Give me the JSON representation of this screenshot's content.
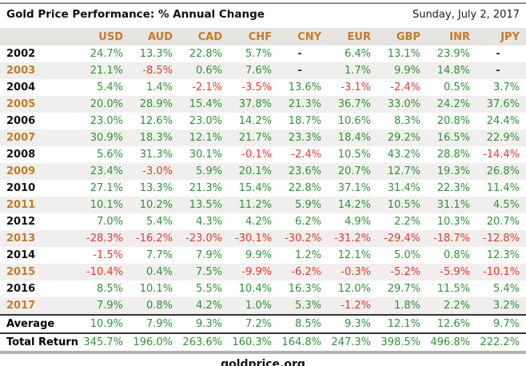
{
  "header": {
    "title": "Gold Price Performance: % Annual Change",
    "date": "Sunday, July 2, 2017"
  },
  "chart_data": {
    "type": "table",
    "title": "Gold Price Performance: % Annual Change",
    "columns": [
      "USD",
      "AUD",
      "CAD",
      "CHF",
      "CNY",
      "EUR",
      "GBP",
      "INR",
      "JPY"
    ],
    "rows": [
      {
        "label": "2002",
        "values": [
          "24.7%",
          "13.3%",
          "22.8%",
          "5.7%",
          "-",
          "6.4%",
          "13.1%",
          "23.9%",
          "-"
        ]
      },
      {
        "label": "2003",
        "values": [
          "21.1%",
          "-8.5%",
          "0.6%",
          "7.6%",
          "-",
          "1.7%",
          "9.9%",
          "14.8%",
          "-"
        ]
      },
      {
        "label": "2004",
        "values": [
          "5.4%",
          "1.4%",
          "-2.1%",
          "-3.5%",
          "13.6%",
          "-3.1%",
          "-2.4%",
          "0.5%",
          "3.7%"
        ]
      },
      {
        "label": "2005",
        "values": [
          "20.0%",
          "28.9%",
          "15.4%",
          "37.8%",
          "21.3%",
          "36.7%",
          "33.0%",
          "24.2%",
          "37.6%"
        ]
      },
      {
        "label": "2006",
        "values": [
          "23.0%",
          "12.6%",
          "23.0%",
          "14.2%",
          "18.7%",
          "10.6%",
          "8.3%",
          "20.8%",
          "24.4%"
        ]
      },
      {
        "label": "2007",
        "values": [
          "30.9%",
          "18.3%",
          "12.1%",
          "21.7%",
          "23.3%",
          "18.4%",
          "29.2%",
          "16.5%",
          "22.9%"
        ]
      },
      {
        "label": "2008",
        "values": [
          "5.6%",
          "31.3%",
          "30.1%",
          "-0.1%",
          "-2.4%",
          "10.5%",
          "43.2%",
          "28.8%",
          "-14.4%"
        ]
      },
      {
        "label": "2009",
        "values": [
          "23.4%",
          "-3.0%",
          "5.9%",
          "20.1%",
          "23.6%",
          "20.7%",
          "12.7%",
          "19.3%",
          "26.8%"
        ]
      },
      {
        "label": "2010",
        "values": [
          "27.1%",
          "13.3%",
          "21.3%",
          "15.4%",
          "22.8%",
          "37.1%",
          "31.4%",
          "22.3%",
          "11.4%"
        ]
      },
      {
        "label": "2011",
        "values": [
          "10.1%",
          "10.2%",
          "13.5%",
          "11.2%",
          "5.9%",
          "14.2%",
          "10.5%",
          "31.1%",
          "4.5%"
        ]
      },
      {
        "label": "2012",
        "values": [
          "7.0%",
          "5.4%",
          "4.3%",
          "4.2%",
          "6.2%",
          "4.9%",
          "2.2%",
          "10.3%",
          "20.7%"
        ]
      },
      {
        "label": "2013",
        "values": [
          "-28.3%",
          "-16.2%",
          "-23.0%",
          "-30.1%",
          "-30.2%",
          "-31.2%",
          "-29.4%",
          "-18.7%",
          "-12.8%"
        ]
      },
      {
        "label": "2014",
        "values": [
          "-1.5%",
          "7.7%",
          "7.9%",
          "9.9%",
          "1.2%",
          "12.1%",
          "5.0%",
          "0.8%",
          "12.3%"
        ]
      },
      {
        "label": "2015",
        "values": [
          "-10.4%",
          "0.4%",
          "7.5%",
          "-9.9%",
          "-6.2%",
          "-0.3%",
          "-5.2%",
          "-5.9%",
          "-10.1%"
        ]
      },
      {
        "label": "2016",
        "values": [
          "8.5%",
          "10.1%",
          "5.5%",
          "10.4%",
          "16.3%",
          "12.0%",
          "29.7%",
          "11.5%",
          "5.4%"
        ]
      },
      {
        "label": "2017",
        "values": [
          "7.9%",
          "0.8%",
          "4.2%",
          "1.0%",
          "5.3%",
          "-1.2%",
          "1.8%",
          "2.2%",
          "3.2%"
        ]
      },
      {
        "label": "Average",
        "values": [
          "10.9%",
          "7.9%",
          "9.3%",
          "7.2%",
          "8.5%",
          "9.3%",
          "12.1%",
          "12.6%",
          "9.7%"
        ]
      },
      {
        "label": "Total Return",
        "values": [
          "345.7%",
          "196.0%",
          "263.6%",
          "160.3%",
          "164.8%",
          "247.3%",
          "398.5%",
          "496.8%",
          "222.2%"
        ]
      }
    ]
  },
  "footer": {
    "source_label": "goldprice.org"
  },
  "colors": {
    "positive_green": "#2E9534",
    "negative_red": "#E8392E",
    "accent_orange": "#C67B28",
    "header_band_bg": "#E6E5E2",
    "alt_row_bg": "#F0EFED"
  }
}
